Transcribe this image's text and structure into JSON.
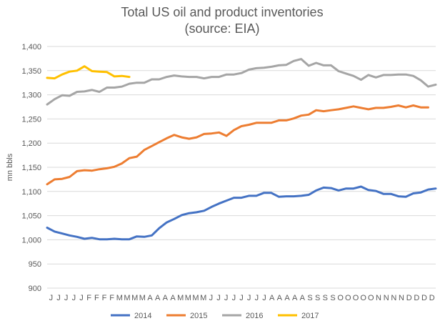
{
  "chart_data": {
    "type": "line",
    "title_lines": [
      "Total US oil and product inventories",
      "(source: EIA)"
    ],
    "xlabel": "",
    "ylabel": "mn bbls",
    "ylim": [
      900,
      1400
    ],
    "yticks": [
      "900",
      "950",
      "1,000",
      "1,050",
      "1,100",
      "1,150",
      "1,200",
      "1,250",
      "1,300",
      "1,350",
      "1,400"
    ],
    "grid": true,
    "legend_position": "bottom",
    "x_tick_labels": [
      "J",
      "J",
      "J",
      "J",
      "J",
      "F",
      "F",
      "F",
      "F",
      "M",
      "M",
      "M",
      "M",
      "A",
      "A",
      "A",
      "A",
      "M",
      "M",
      "M",
      "M",
      "J",
      "J",
      "J",
      "J",
      "J",
      "J",
      "J",
      "J",
      "A",
      "A",
      "A",
      "A",
      "A",
      "S",
      "S",
      "S",
      "S",
      "O",
      "O",
      "O",
      "O",
      "O",
      "N",
      "N",
      "N",
      "N",
      "D",
      "D",
      "D",
      "D"
    ],
    "series": [
      {
        "name": "2014",
        "color": "#4472C4",
        "values": [
          1025,
          1017,
          1013,
          1009,
          1006,
          1002,
          1004,
          1001,
          1001,
          1002,
          1001,
          1001,
          1007,
          1006,
          1009,
          1024,
          1036,
          1043,
          1051,
          1055,
          1057,
          1060,
          1068,
          1075,
          1081,
          1087,
          1087,
          1091,
          1091,
          1097,
          1097,
          1089,
          1090,
          1090,
          1091,
          1093,
          1102,
          1108,
          1107,
          1102,
          1106,
          1106,
          1110,
          1103,
          1101,
          1095,
          1095,
          1090,
          1089,
          1096,
          1098,
          1104,
          1106
        ]
      },
      {
        "name": "2015",
        "color": "#ED7D31",
        "values": [
          1115,
          1125,
          1126,
          1130,
          1142,
          1144,
          1143,
          1146,
          1148,
          1151,
          1158,
          1169,
          1172,
          1186,
          1194,
          1202,
          1210,
          1217,
          1212,
          1209,
          1212,
          1219,
          1220,
          1222,
          1215,
          1227,
          1235,
          1238,
          1242,
          1242,
          1242,
          1247,
          1247,
          1251,
          1257,
          1259,
          1268,
          1266,
          1268,
          1270,
          1273,
          1276,
          1273,
          1270,
          1273,
          1273,
          1275,
          1278,
          1274,
          1278,
          1274,
          1274
        ]
      },
      {
        "name": "2016",
        "color": "#A5A5A5",
        "values": [
          1280,
          1291,
          1299,
          1298,
          1306,
          1307,
          1310,
          1306,
          1315,
          1315,
          1317,
          1323,
          1325,
          1325,
          1332,
          1332,
          1337,
          1340,
          1338,
          1337,
          1337,
          1334,
          1337,
          1337,
          1342,
          1342,
          1345,
          1352,
          1355,
          1356,
          1358,
          1361,
          1362,
          1370,
          1374,
          1360,
          1366,
          1361,
          1361,
          1349,
          1344,
          1339,
          1331,
          1341,
          1336,
          1341,
          1341,
          1342,
          1342,
          1339,
          1330,
          1317,
          1321
        ]
      },
      {
        "name": "2017",
        "color": "#FFC000",
        "values": [
          1335,
          1334,
          1342,
          1348,
          1350,
          1359,
          1349,
          1348,
          1347,
          1338,
          1339,
          1337
        ]
      }
    ]
  }
}
